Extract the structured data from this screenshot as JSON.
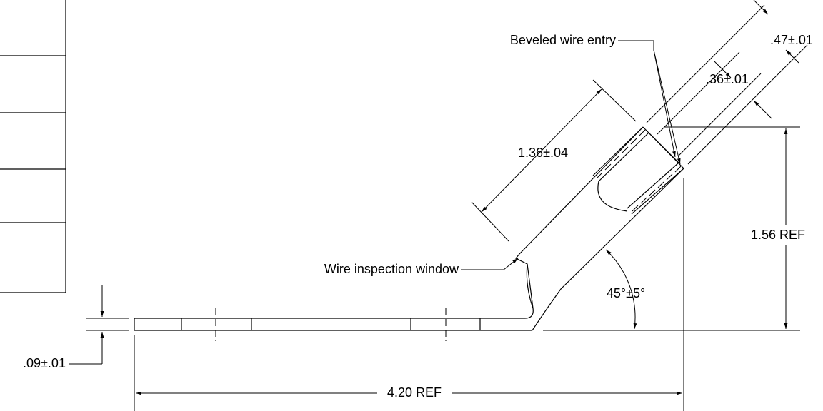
{
  "callouts": [
    "Beveled wire entry",
    "Wire inspection window"
  ],
  "dimensions": [
    ".47±.01",
    ".36±.01",
    "1.36±.04",
    "1.56 REF",
    "45°±5°",
    ".09±.01",
    "4.20 REF"
  ]
}
